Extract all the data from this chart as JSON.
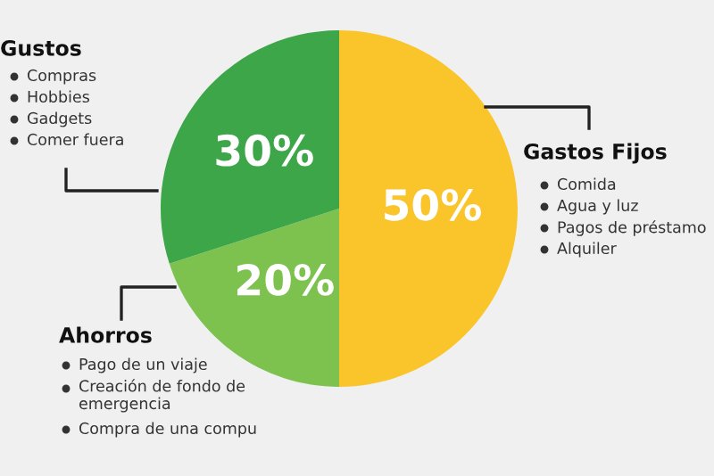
{
  "chart_data": {
    "type": "pie",
    "categories": [
      "Gastos Fijos",
      "Ahorros",
      "Gustos"
    ],
    "values": [
      50,
      20,
      30
    ],
    "colors": [
      "#f9c52b",
      "#7dc24f",
      "#3ca649"
    ],
    "value_labels": [
      "50%",
      "20%",
      "30%"
    ],
    "annotations": [
      "Comida",
      "Agua y luz",
      "Pagos de préstamo",
      "Alquiler",
      "Pago de un viaje",
      "Creación de fondo de\nemergencia",
      "Compra de una compu",
      "Compras",
      "Hobbies",
      "Gadgets",
      "Comer fuera"
    ]
  }
}
